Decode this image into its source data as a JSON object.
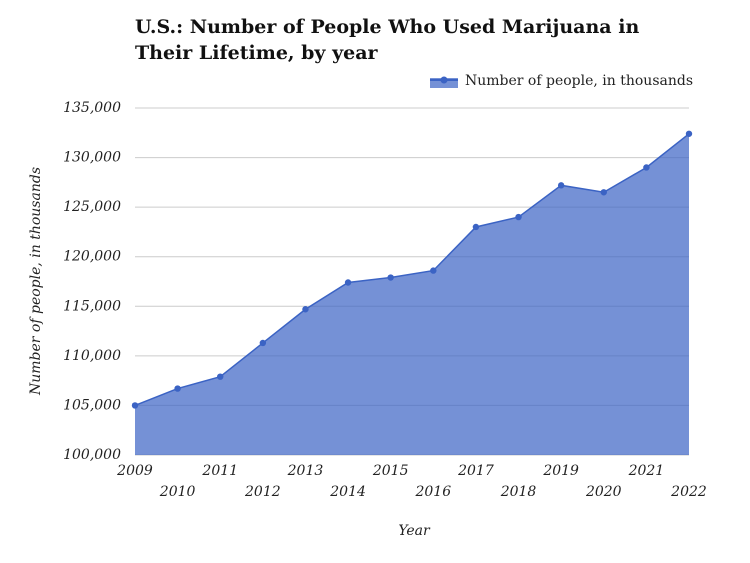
{
  "chart_data": {
    "type": "area",
    "title": "U.S.: Number of People Who Used Marijuana in Their Lifetime, by year",
    "x_label": "Year",
    "y_label": "Number of people, in thousands",
    "categories": [
      "2009",
      "2010",
      "2011",
      "2012",
      "2013",
      "2014",
      "2015",
      "2016",
      "2017",
      "2018",
      "2019",
      "2020",
      "2021",
      "2022"
    ],
    "series": [
      {
        "name": "Number of people, in thousands",
        "color": "#3b63c4",
        "values": [
          105000,
          106700,
          107900,
          111300,
          114700,
          117400,
          117900,
          118600,
          123000,
          124000,
          127200,
          126500,
          129000,
          132400
        ]
      }
    ],
    "ylim": [
      100000,
      135000
    ],
    "yticks": [
      {
        "value": 100000,
        "label": "100,000"
      },
      {
        "value": 105000,
        "label": "105,000"
      },
      {
        "value": 110000,
        "label": "110,000"
      },
      {
        "value": 115000,
        "label": "115,000"
      },
      {
        "value": 120000,
        "label": "120,000"
      },
      {
        "value": 125000,
        "label": "125,000"
      },
      {
        "value": 130000,
        "label": "130,000"
      },
      {
        "value": 135000,
        "label": "135,000"
      }
    ],
    "grid": true,
    "legend": "top-right"
  }
}
